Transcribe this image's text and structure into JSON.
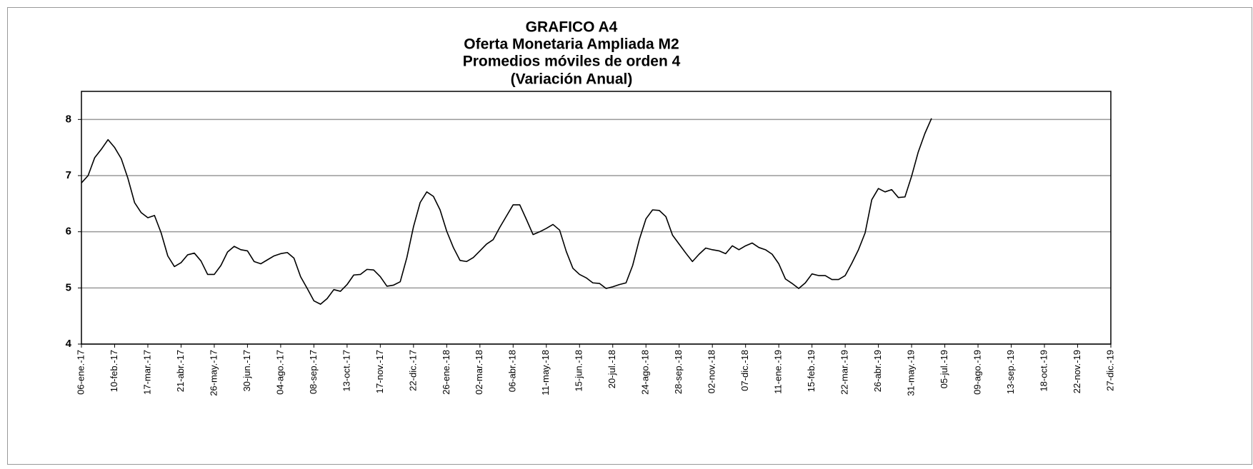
{
  "chart_data": {
    "type": "line",
    "title": "GRAFICO A4",
    "subtitle": [
      "Oferta Monetaria Ampliada M2",
      "Promedios móviles de orden 4",
      "(Variación Anual)"
    ],
    "categories": [
      "06-ene.-17",
      null,
      null,
      null,
      null,
      "10-feb.-17",
      null,
      null,
      null,
      null,
      "17-mar.-17",
      null,
      null,
      null,
      null,
      "21-abr.-17",
      null,
      null,
      null,
      null,
      "26-may.-17",
      null,
      null,
      null,
      null,
      "30-jun.-17",
      null,
      null,
      null,
      null,
      "04-ago.-17",
      null,
      null,
      null,
      null,
      "08-sep.-17",
      null,
      null,
      null,
      null,
      "13-oct.-17",
      null,
      null,
      null,
      null,
      "17-nov.-17",
      null,
      null,
      null,
      null,
      "22-dic.-17",
      null,
      null,
      null,
      null,
      "26-ene.-18",
      null,
      null,
      null,
      null,
      "02-mar.-18",
      null,
      null,
      null,
      null,
      "06-abr.-18",
      null,
      null,
      null,
      null,
      "11-may.-18",
      null,
      null,
      null,
      null,
      "15-jun.-18",
      null,
      null,
      null,
      null,
      "20-jul.-18",
      null,
      null,
      null,
      null,
      "24-ago.-18",
      null,
      null,
      null,
      null,
      "28-sep.-18",
      null,
      null,
      null,
      null,
      "02-nov.-18",
      null,
      null,
      null,
      null,
      "07-dic.-18",
      null,
      null,
      null,
      null,
      "11-ene.-19",
      null,
      null,
      null,
      null,
      "15-feb.-19",
      null,
      null,
      null,
      null,
      "22-mar.-19",
      null,
      null,
      null,
      null,
      "26-abr.-19",
      null,
      null,
      null,
      null,
      "31-may.-19",
      null,
      null,
      null,
      null,
      "05-jul.-19",
      null,
      null,
      null,
      null,
      "09-ago.-19",
      null,
      null,
      null,
      null,
      "13-sep.-19",
      null,
      null,
      null,
      null,
      "18-oct.-19",
      null,
      null,
      null,
      null,
      "22-nov.-19",
      null,
      null,
      null,
      null,
      "27-dic.-19"
    ],
    "values": [
      6.87,
      7.0,
      7.32,
      7.47,
      7.64,
      7.5,
      7.3,
      6.95,
      6.52,
      6.34,
      6.25,
      6.29,
      5.98,
      5.57,
      5.38,
      5.45,
      5.59,
      5.62,
      5.48,
      5.24,
      5.24,
      5.4,
      5.64,
      5.74,
      5.68,
      5.66,
      5.47,
      5.43,
      5.5,
      5.57,
      5.61,
      5.63,
      5.53,
      5.2,
      4.99,
      4.77,
      4.71,
      4.81,
      4.97,
      4.94,
      5.06,
      5.23,
      5.24,
      5.33,
      5.32,
      5.2,
      5.03,
      5.05,
      5.11,
      5.54,
      6.09,
      6.52,
      6.71,
      6.63,
      6.39,
      6.01,
      5.72,
      5.49,
      5.47,
      5.54,
      5.66,
      5.78,
      5.86,
      6.08,
      6.28,
      6.48,
      6.48,
      6.22,
      5.95,
      6.0,
      6.06,
      6.13,
      6.03,
      5.65,
      5.35,
      5.24,
      5.18,
      5.09,
      5.08,
      4.99,
      5.02,
      5.06,
      5.09,
      5.4,
      5.86,
      6.23,
      6.39,
      6.38,
      6.27,
      5.94,
      5.78,
      5.62,
      5.47,
      5.6,
      5.71,
      5.68,
      5.66,
      5.61,
      5.75,
      5.68,
      5.75,
      5.8,
      5.72,
      5.68,
      5.6,
      5.43,
      5.16,
      5.08,
      4.99,
      5.09,
      5.25,
      5.22,
      5.22,
      5.15,
      5.15,
      5.22,
      5.44,
      5.68,
      5.98,
      6.57,
      6.77,
      6.71,
      6.75,
      6.61,
      6.62,
      6.99,
      7.42,
      7.75,
      8.02,
      null,
      null,
      null,
      null,
      null,
      null,
      null,
      null,
      null,
      null,
      null,
      null,
      null,
      null,
      null,
      null,
      null,
      null,
      null,
      null,
      null,
      null,
      null,
      null,
      null,
      null,
      null
    ],
    "color": "#000000",
    "ylim": [
      4,
      8.5
    ],
    "yticks": [
      4,
      5,
      6,
      7,
      8
    ],
    "grid": true
  }
}
